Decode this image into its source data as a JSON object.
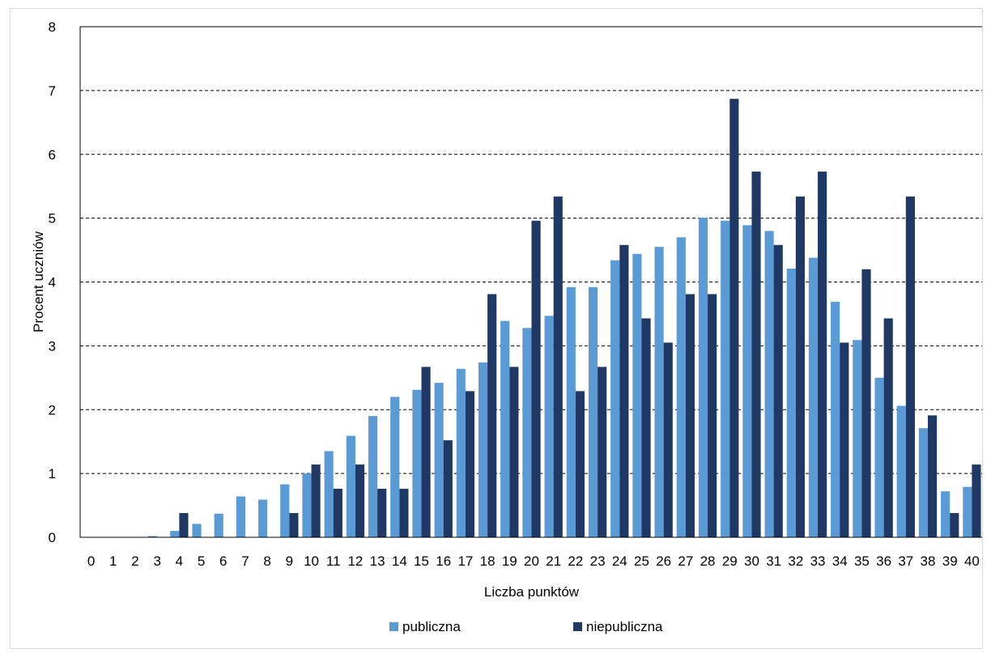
{
  "chart_data": {
    "type": "bar",
    "xlabel": "Liczba punktów",
    "ylabel": "Procent uczniów",
    "ylim": [
      0,
      8
    ],
    "yticks": [
      0,
      1,
      2,
      3,
      4,
      5,
      6,
      7,
      8
    ],
    "grid": "horizontal dashed",
    "legend_position": "bottom",
    "categories": [
      "0",
      "1",
      "2",
      "3",
      "4",
      "5",
      "6",
      "7",
      "8",
      "9",
      "10",
      "11",
      "12",
      "13",
      "14",
      "15",
      "16",
      "17",
      "18",
      "19",
      "20",
      "21",
      "22",
      "23",
      "24",
      "25",
      "26",
      "27",
      "28",
      "29",
      "30",
      "31",
      "32",
      "33",
      "34",
      "35",
      "36",
      "37",
      "38",
      "39",
      "40"
    ],
    "series": [
      {
        "name": "publiczna",
        "color": "#5b9bd5",
        "values": [
          0,
          0,
          0,
          0.02,
          0.1,
          0.21,
          0.37,
          0.64,
          0.59,
          0.83,
          1.0,
          1.35,
          1.59,
          1.9,
          2.2,
          2.31,
          2.42,
          2.64,
          2.74,
          3.39,
          3.28,
          3.47,
          3.92,
          3.92,
          4.34,
          4.44,
          4.55,
          4.7,
          5.01,
          4.96,
          4.89,
          4.8,
          4.21,
          4.38,
          3.69,
          3.09,
          2.5,
          2.06,
          1.71,
          0.72,
          0.79
        ]
      },
      {
        "name": "niepubliczna",
        "color": "#1f3864",
        "values": [
          0,
          0,
          0,
          0,
          0.38,
          0,
          0,
          0,
          0,
          0.38,
          1.14,
          0.76,
          1.14,
          0.76,
          0.76,
          2.67,
          1.52,
          2.29,
          3.81,
          2.67,
          4.96,
          5.34,
          2.29,
          2.67,
          4.58,
          3.43,
          3.05,
          3.81,
          3.81,
          6.87,
          5.73,
          4.58,
          5.34,
          5.73,
          3.05,
          4.2,
          3.43,
          5.34,
          1.91,
          0.38,
          1.14
        ]
      }
    ]
  }
}
